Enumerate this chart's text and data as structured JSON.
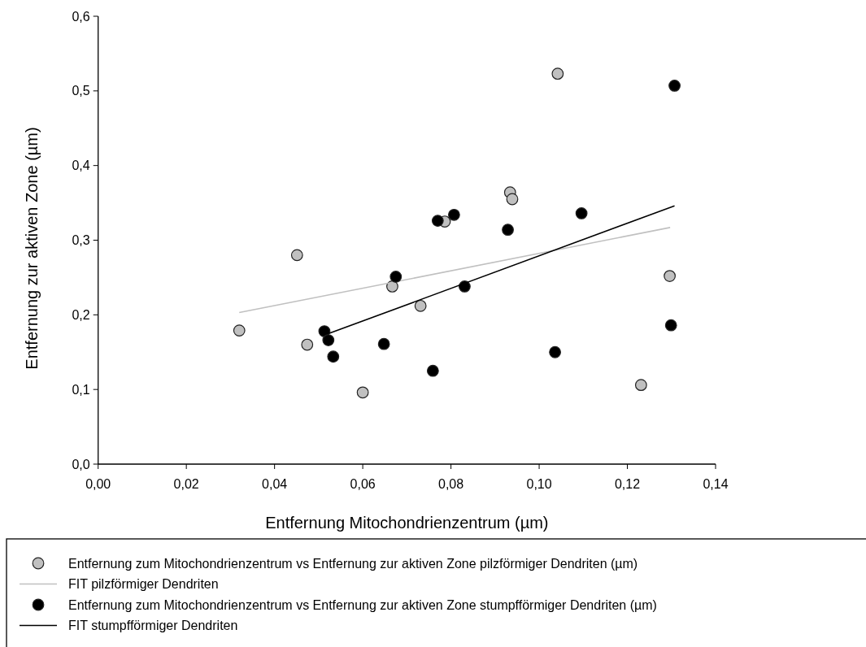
{
  "chart_data": {
    "type": "scatter",
    "xlabel": "Entfernung Mitochondrienzentrum (µm)",
    "ylabel": "Entfernung zur aktiven Zone (µm)",
    "xlim": [
      0,
      0.14
    ],
    "ylim": [
      0,
      0.6
    ],
    "xticks": [
      {
        "value": 0,
        "label": "0,00"
      },
      {
        "value": 0.02,
        "label": "0,02"
      },
      {
        "value": 0.04,
        "label": "0,04"
      },
      {
        "value": 0.06,
        "label": "0,06"
      },
      {
        "value": 0.08,
        "label": "0,08"
      },
      {
        "value": 0.1,
        "label": "0,10"
      },
      {
        "value": 0.12,
        "label": "0,12"
      },
      {
        "value": 0.14,
        "label": "0,14"
      }
    ],
    "yticks": [
      {
        "value": 0,
        "label": "0,0"
      },
      {
        "value": 0.1,
        "label": "0,1"
      },
      {
        "value": 0.2,
        "label": "0,2"
      },
      {
        "value": 0.3,
        "label": "0,3"
      },
      {
        "value": 0.4,
        "label": "0,4"
      },
      {
        "value": 0.5,
        "label": "0,5"
      },
      {
        "value": 0.6,
        "label": "0,6"
      }
    ],
    "legend": "bottom",
    "marker": "circle",
    "series": [
      {
        "name": "Entfernung zum Mitochondrienzentrum vs Entfernung zur aktiven Zone pilzförmiger Dendriten (µm)",
        "color": "#c0c0c0",
        "x": [
          0.032,
          0.0451,
          0.0474,
          0.06,
          0.0667,
          0.0731,
          0.0786,
          0.0934,
          0.0939,
          0.1042,
          0.1231,
          0.1296
        ],
        "values": [
          0.179,
          0.28,
          0.16,
          0.096,
          0.238,
          0.212,
          0.325,
          0.364,
          0.355,
          0.523,
          0.106,
          0.252
        ]
      },
      {
        "name": "FIT pilzförmiger Dendriten",
        "type": "line",
        "marker": "none",
        "color": "#c0c0c0",
        "x": [
          0.032,
          0.1297
        ],
        "values": [
          0.203,
          0.317
        ]
      },
      {
        "name": "Entfernung zum Mitochondrienzentrum vs Entfernung zur aktiven Zone stumpfförmiger Dendriten (µm)",
        "color": "#000000",
        "x": [
          0.0513,
          0.0522,
          0.0533,
          0.0648,
          0.0675,
          0.0759,
          0.077,
          0.0807,
          0.0831,
          0.0929,
          0.1036,
          0.1096,
          0.1299,
          0.1307
        ],
        "values": [
          0.178,
          0.166,
          0.144,
          0.161,
          0.251,
          0.125,
          0.326,
          0.334,
          0.238,
          0.314,
          0.15,
          0.336,
          0.186,
          0.507
        ]
      },
      {
        "name": "FIT stumpfförmiger Dendriten",
        "type": "line",
        "marker": "none",
        "color": "#000000",
        "x": [
          0.0523,
          0.1307
        ],
        "values": [
          0.175,
          0.346
        ]
      }
    ]
  }
}
